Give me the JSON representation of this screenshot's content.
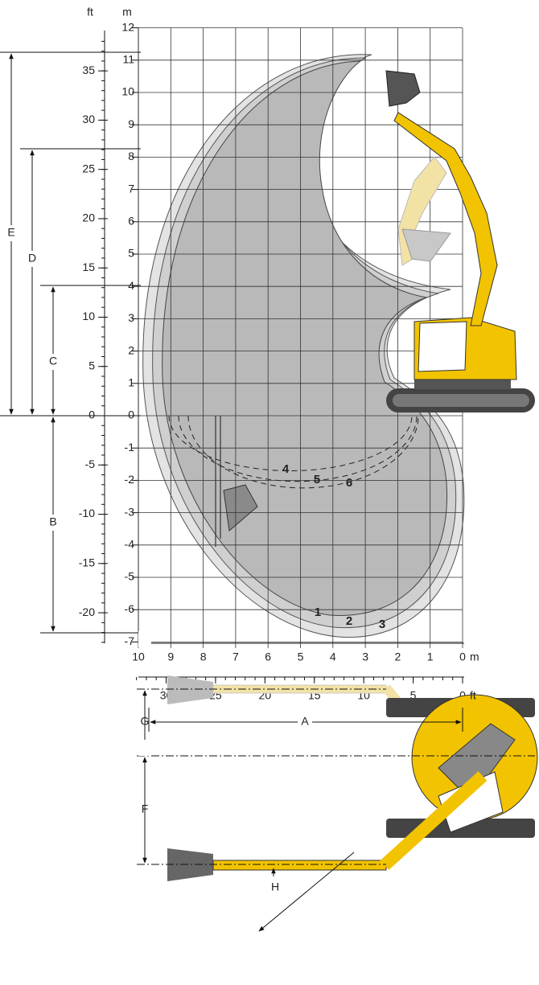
{
  "axes": {
    "ft_unit": "ft",
    "m_unit": "m",
    "m_ticks": [
      12,
      11,
      10,
      9,
      8,
      7,
      6,
      5,
      4,
      3,
      2,
      1,
      0,
      -1,
      -2,
      -3,
      -4,
      -5,
      -6,
      -7
    ],
    "ft_ticks": [
      35,
      30,
      25,
      20,
      15,
      10,
      5,
      0,
      -5,
      -10,
      -15,
      -20
    ],
    "x_m_ticks": [
      10,
      9,
      8,
      7,
      6,
      5,
      4,
      3,
      2,
      1,
      0
    ],
    "x_m_unit": "m",
    "x_ft_ticks": [
      30,
      25,
      20,
      15,
      10,
      5,
      0
    ],
    "x_ft_unit": "ft"
  },
  "curve_labels": [
    "1",
    "2",
    "3",
    "4",
    "5",
    "6"
  ],
  "dimensions": [
    "A",
    "B",
    "C",
    "D",
    "E",
    "F",
    "G",
    "H"
  ]
}
